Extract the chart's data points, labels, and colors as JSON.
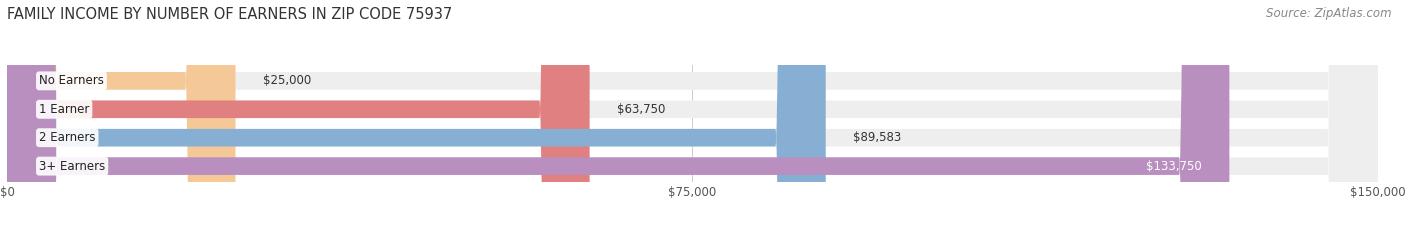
{
  "title": "FAMILY INCOME BY NUMBER OF EARNERS IN ZIP CODE 75937",
  "source": "Source: ZipAtlas.com",
  "categories": [
    "No Earners",
    "1 Earner",
    "2 Earners",
    "3+ Earners"
  ],
  "values": [
    25000,
    63750,
    89583,
    133750
  ],
  "bar_colors": [
    "#f5c897",
    "#e08080",
    "#87afd4",
    "#b88fbe"
  ],
  "bar_bg_color": "#eeeeee",
  "value_labels": [
    "$25,000",
    "$63,750",
    "$89,583",
    "$133,750"
  ],
  "label_colors": [
    "#333333",
    "#333333",
    "#333333",
    "#ffffff"
  ],
  "x_max": 150000,
  "x_ticks": [
    0,
    75000,
    150000
  ],
  "x_tick_labels": [
    "$0",
    "$75,000",
    "$150,000"
  ],
  "title_fontsize": 10.5,
  "source_fontsize": 8.5,
  "label_fontsize": 8.5,
  "bar_label_fontsize": 8.5,
  "background_color": "#ffffff",
  "bar_height": 0.62
}
